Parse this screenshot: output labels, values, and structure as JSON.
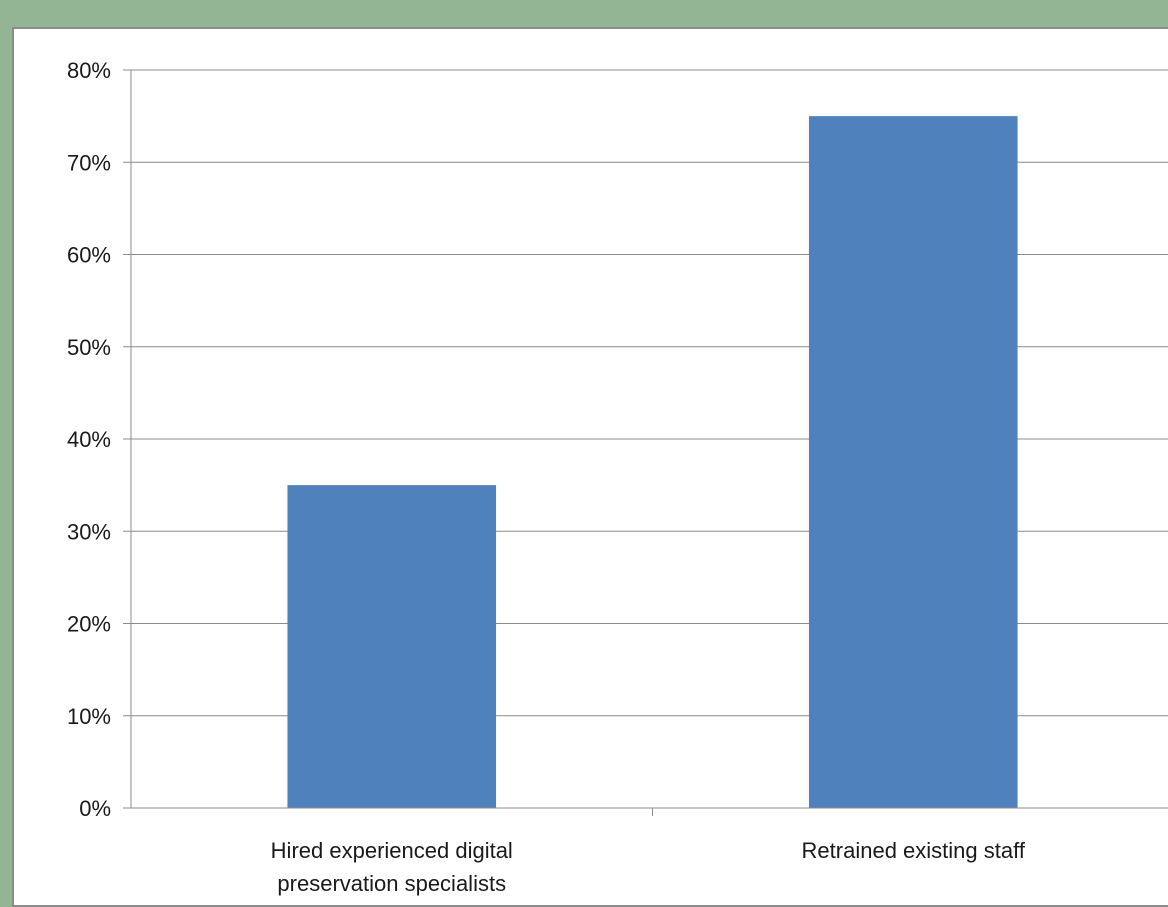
{
  "colors": {
    "background": "#93b594",
    "bar": "#4f81bd",
    "gridline": "#8c8c8c"
  },
  "chart_data": {
    "type": "bar",
    "categories": [
      [
        "Hired experienced digital",
        "preservation specialists"
      ],
      [
        "Retrained existing staff"
      ]
    ],
    "values": [
      35,
      75
    ],
    "ylim": [
      0,
      80
    ],
    "y_tick_step": 10,
    "y_tick_format": "{v}%",
    "grid": true,
    "legend": "none",
    "title": "",
    "xlabel": "",
    "ylabel": ""
  }
}
